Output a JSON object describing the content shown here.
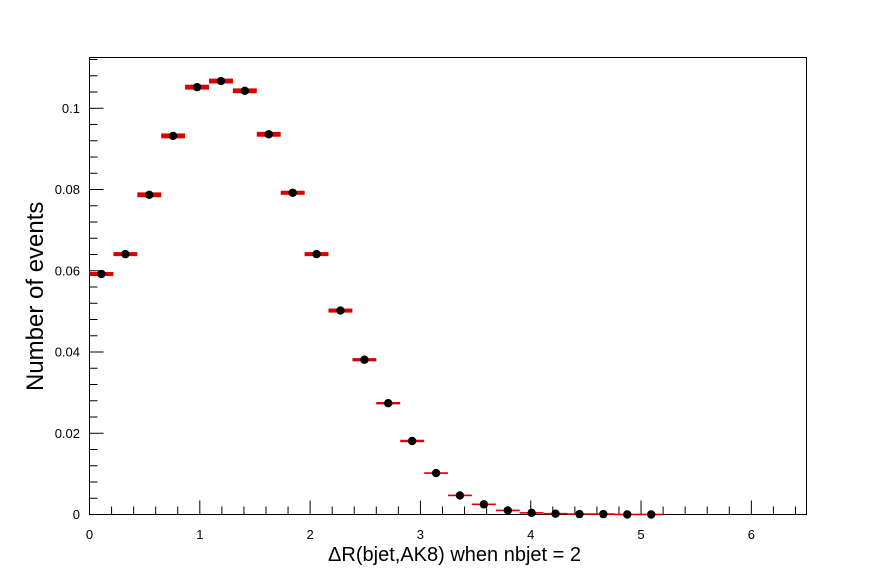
{
  "chart_data": {
    "type": "scatter",
    "title": "",
    "xlabel": "ΔR(bjet,AK8) when nbjet = 2",
    "ylabel": "Number of events",
    "xlim": [
      0,
      6.5
    ],
    "ylim": [
      0,
      0.1125
    ],
    "x_ticks": [
      0,
      1,
      2,
      3,
      4,
      5,
      6
    ],
    "x_tick_labels": [
      "0",
      "1",
      "2",
      "3",
      "4",
      "5",
      "6"
    ],
    "y_ticks": [
      0,
      0.02,
      0.04,
      0.06,
      0.08,
      0.1
    ],
    "y_tick_labels": [
      "0",
      "0.02",
      "0.04",
      "0.06",
      "0.08",
      "0.1"
    ],
    "bin_width": 0.2167,
    "grid": false,
    "legend": "none",
    "colors": {
      "marker": "#000000",
      "error_bar": "#dd0000"
    },
    "x": [
      0.108,
      0.325,
      0.542,
      0.758,
      0.975,
      1.192,
      1.408,
      1.625,
      1.842,
      2.058,
      2.275,
      2.492,
      2.708,
      2.925,
      3.142,
      3.358,
      3.575,
      3.792,
      4.008,
      4.225,
      4.442,
      4.658,
      4.875,
      5.092
    ],
    "values": [
      0.0592,
      0.0641,
      0.0787,
      0.0932,
      0.1052,
      0.1067,
      0.1043,
      0.0936,
      0.0792,
      0.0641,
      0.0502,
      0.0381,
      0.0274,
      0.0181,
      0.0102,
      0.0047,
      0.0025,
      0.001,
      0.0004,
      0.0002,
      0.0001,
      0.0001,
      0.0,
      0.0
    ],
    "errors": [
      0.0005,
      0.0005,
      0.0006,
      0.0006,
      0.0006,
      0.0006,
      0.0006,
      0.0006,
      0.0005,
      0.0005,
      0.0005,
      0.0004,
      0.0003,
      0.0003,
      0.0002,
      0.0001,
      0.0001,
      0.0001,
      5e-05,
      3e-05,
      2e-05,
      1e-05,
      0.0,
      0.0
    ]
  }
}
